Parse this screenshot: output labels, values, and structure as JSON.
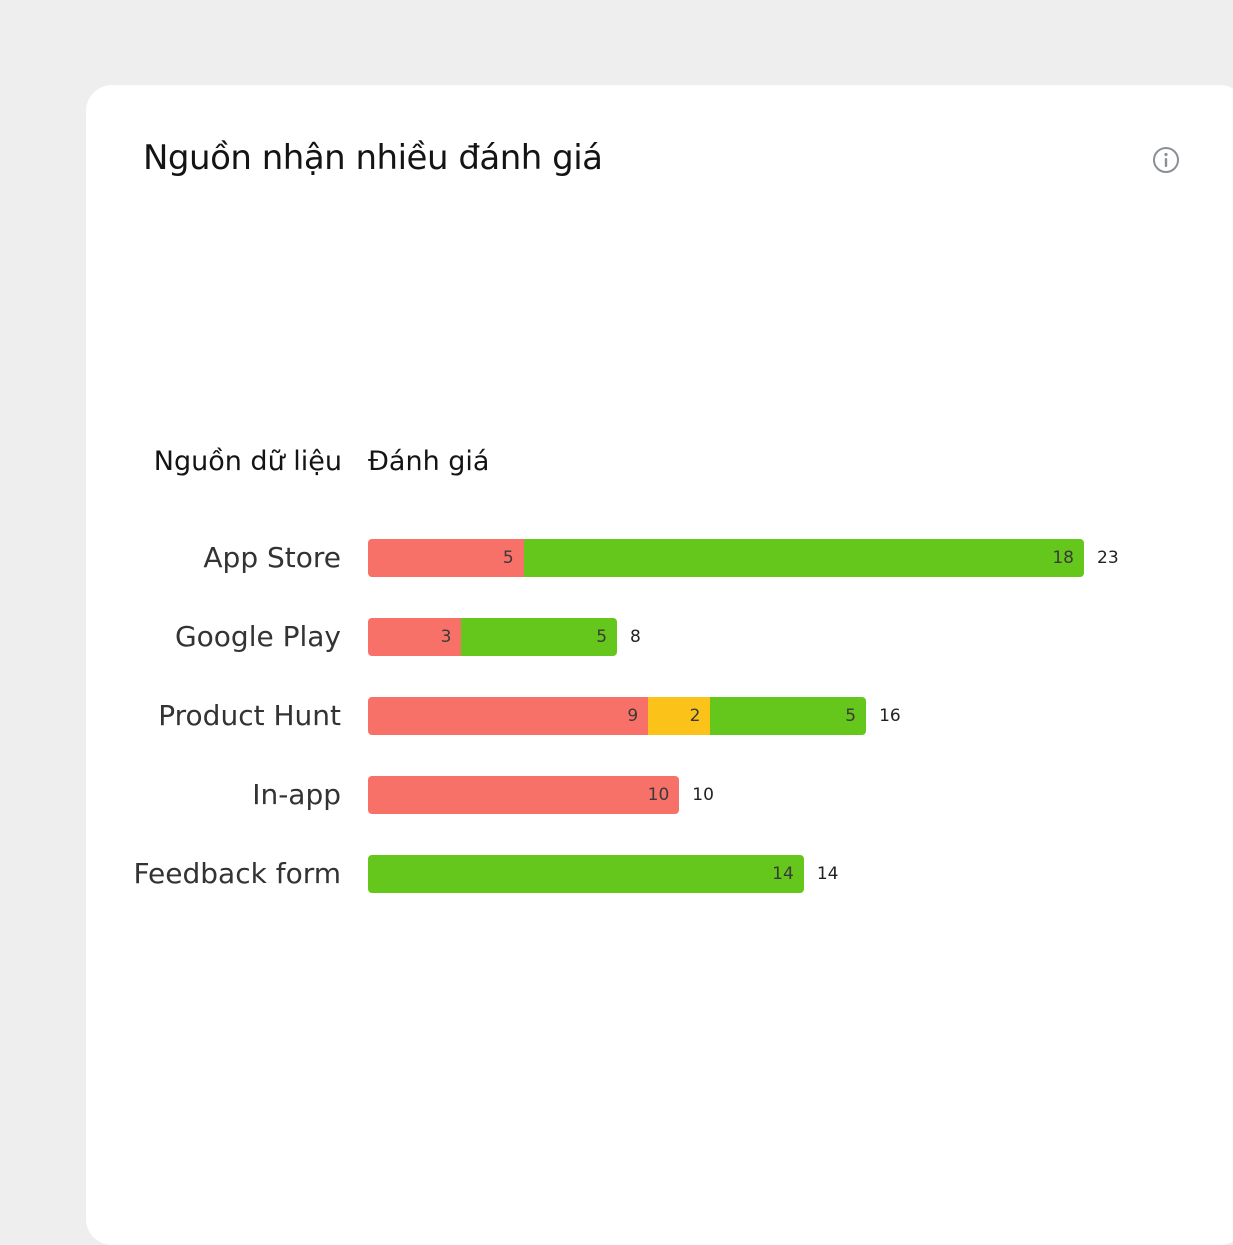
{
  "card": {
    "title": "Nguồn nhận nhiều đánh giá",
    "info_icon": "info-circle-icon"
  },
  "colors": {
    "negative": "#f87168",
    "neutral": "#fbc21a",
    "positive": "#65c61c",
    "background": "#eeeeee"
  },
  "chart_data": {
    "type": "bar",
    "orientation": "horizontal",
    "stacked": true,
    "column_headers": [
      "Nguồn dữ liệu",
      "Đánh giá"
    ],
    "categories": [
      "App Store",
      "Google Play",
      "Product Hunt",
      "In-app",
      "Feedback form"
    ],
    "series": [
      {
        "color": "#f87168",
        "values": [
          5,
          3,
          9,
          10,
          0
        ]
      },
      {
        "color": "#fbc21a",
        "values": [
          0,
          0,
          2,
          0,
          0
        ]
      },
      {
        "color": "#65c61c",
        "values": [
          18,
          5,
          5,
          0,
          14
        ]
      }
    ],
    "totals": [
      23,
      8,
      16,
      10,
      14
    ],
    "xlim": [
      0,
      23
    ],
    "grid": false
  }
}
